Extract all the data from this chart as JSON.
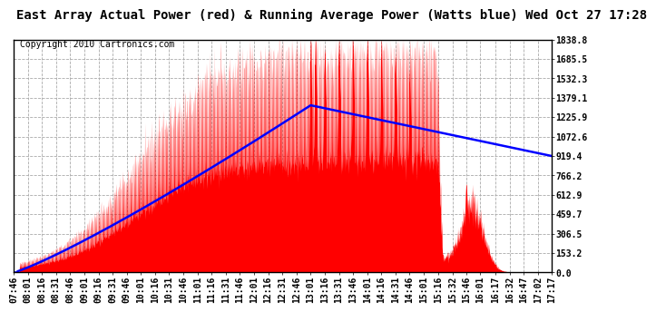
{
  "title": "East Array Actual Power (red) & Running Average Power (Watts blue) Wed Oct 27 17:28",
  "copyright": "Copyright 2010 Cartronics.com",
  "bg_color": "#ffffff",
  "plot_bg_color": "#ffffff",
  "grid_color": "#aaaaaa",
  "actual_color": "red",
  "avg_color": "blue",
  "y_ticks": [
    0.0,
    153.2,
    306.5,
    459.7,
    612.9,
    766.2,
    919.4,
    1072.6,
    1225.9,
    1379.1,
    1532.3,
    1685.5,
    1838.8
  ],
  "ymax": 1838.8,
  "x_labels": [
    "07:46",
    "08:01",
    "08:16",
    "08:31",
    "08:46",
    "09:01",
    "09:16",
    "09:31",
    "09:46",
    "10:01",
    "10:16",
    "10:31",
    "10:46",
    "11:01",
    "11:16",
    "11:31",
    "11:46",
    "12:01",
    "12:16",
    "12:31",
    "12:46",
    "13:01",
    "13:16",
    "13:31",
    "13:46",
    "14:01",
    "14:16",
    "14:31",
    "14:46",
    "15:01",
    "15:16",
    "15:32",
    "15:46",
    "16:01",
    "16:17",
    "16:32",
    "16:47",
    "17:02",
    "17:17"
  ],
  "title_fontsize": 10,
  "copyright_fontsize": 7,
  "tick_fontsize": 7
}
